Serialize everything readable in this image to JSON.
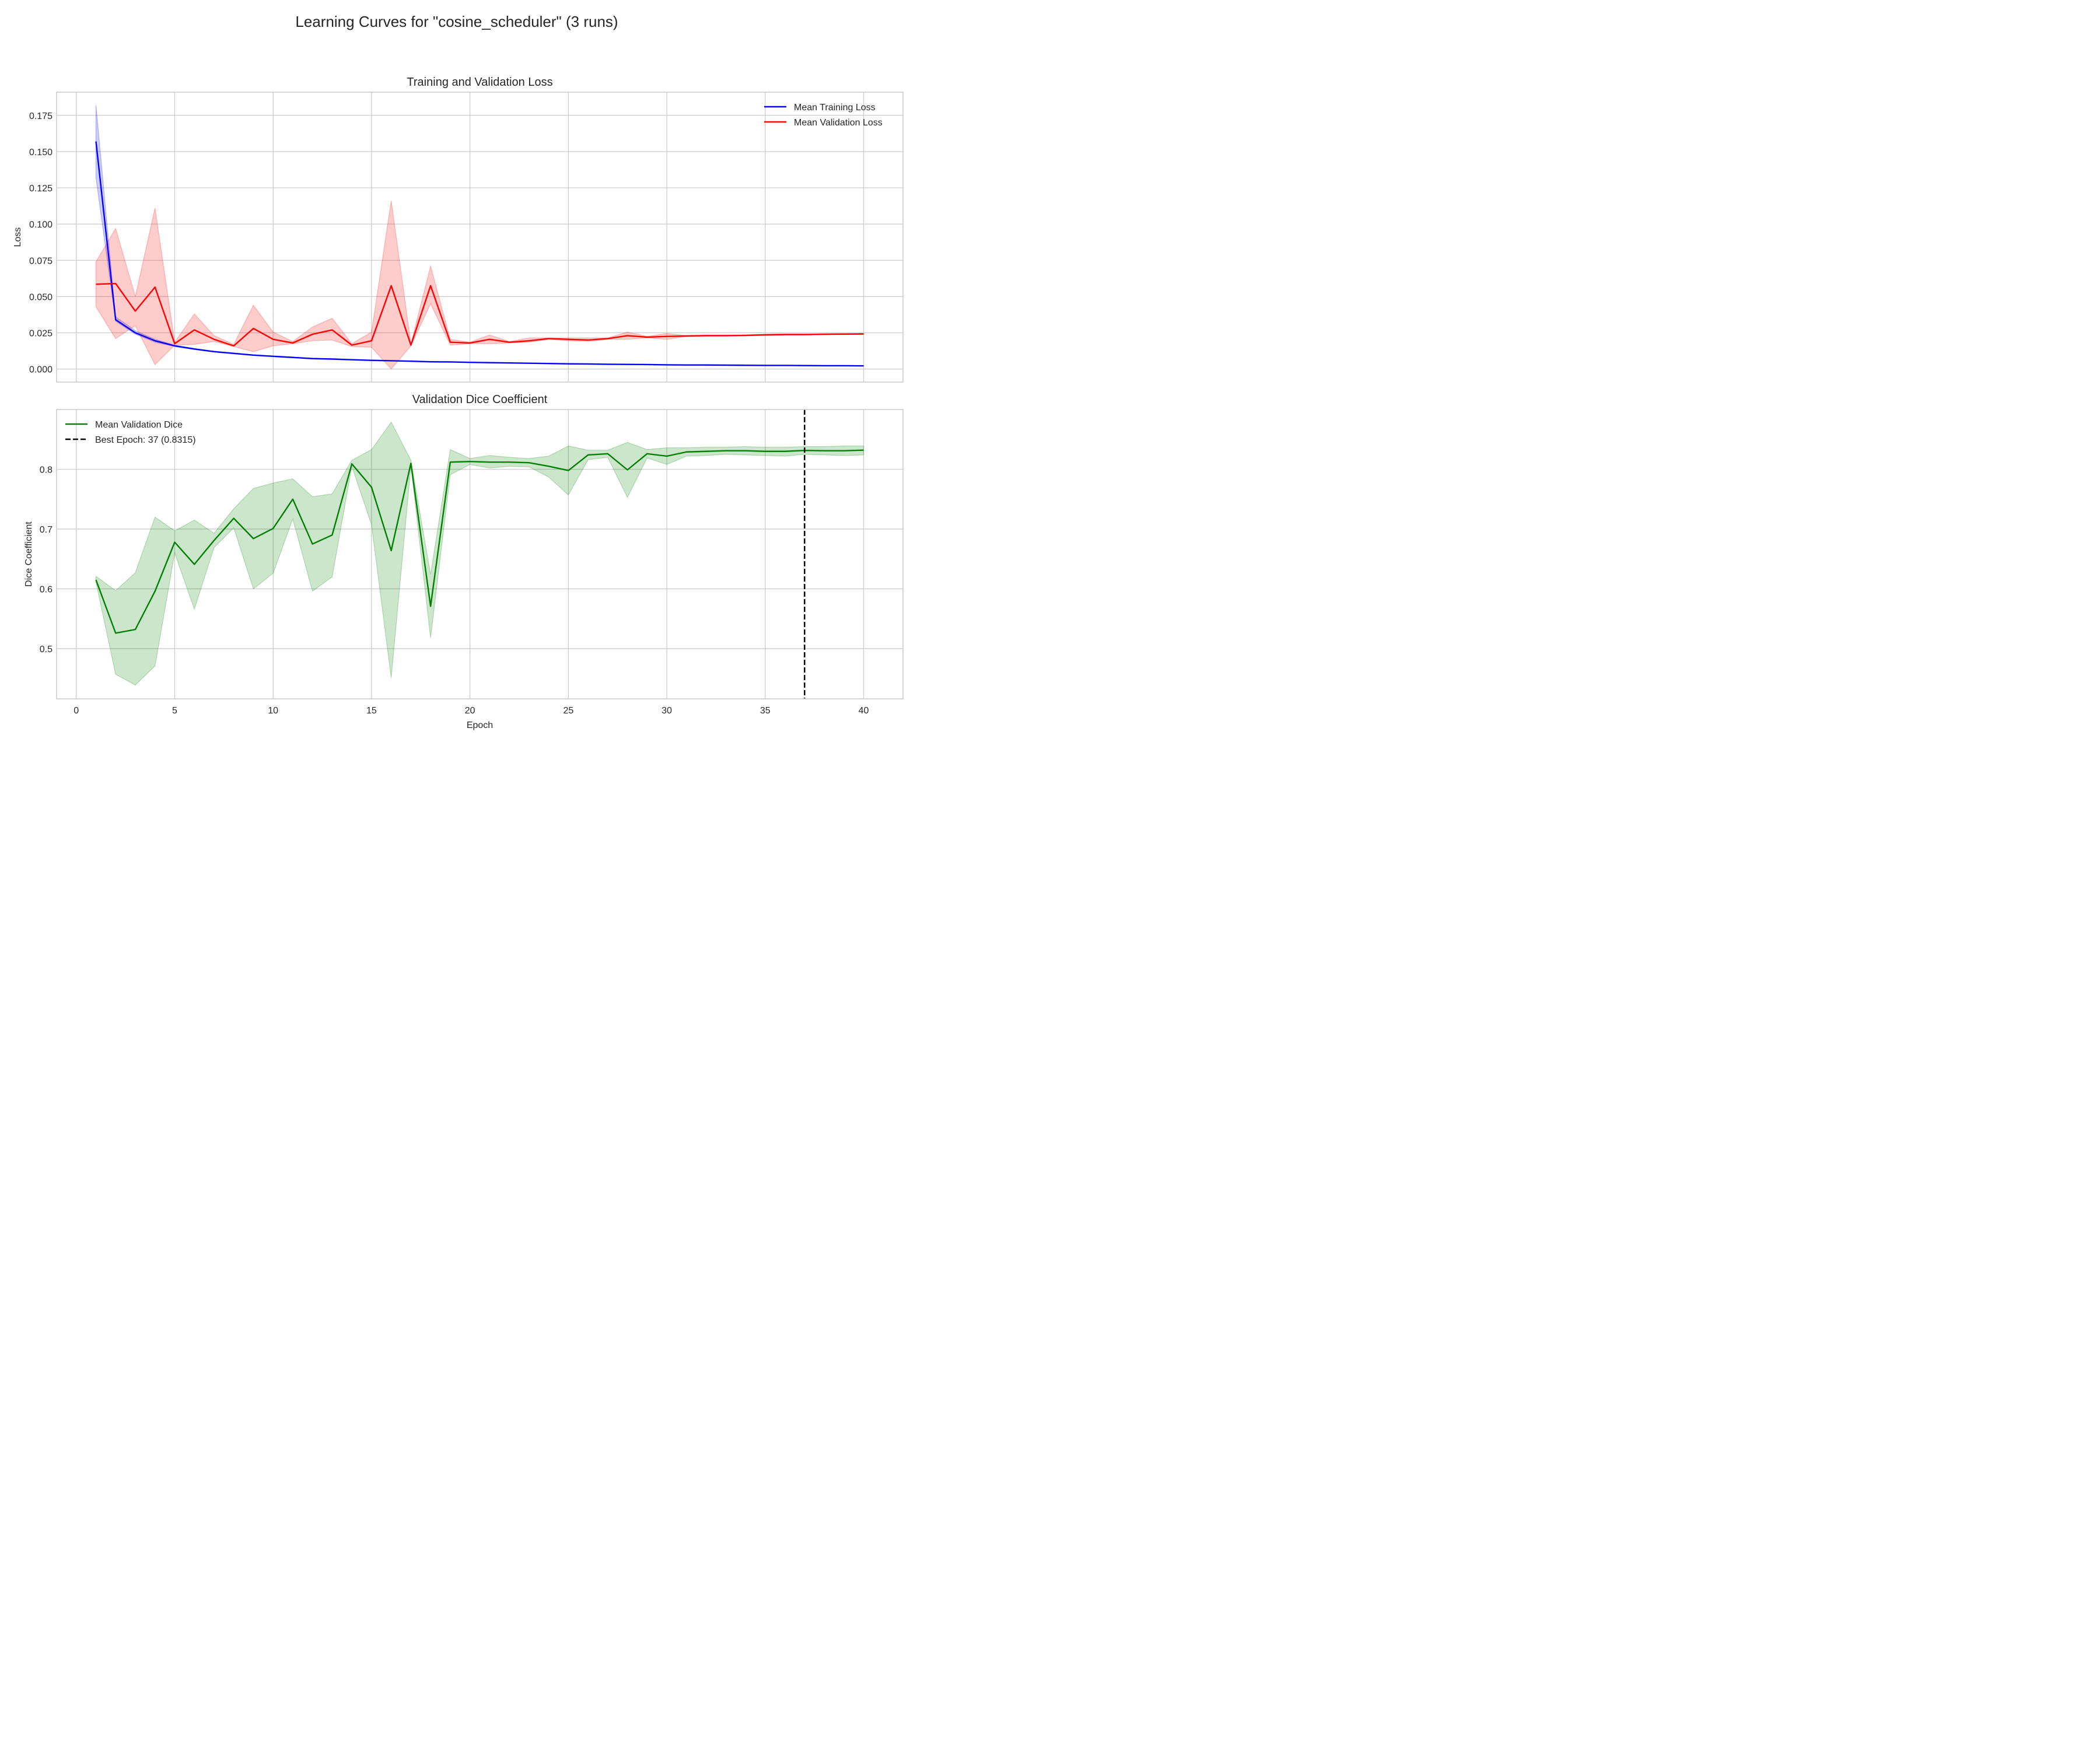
{
  "figure": {
    "suptitle": "Learning Curves for \"cosine_scheduler\" (3 runs)"
  },
  "chart_data": [
    {
      "type": "line",
      "title": "Training and Validation Loss",
      "xlabel": "",
      "ylabel": "Loss",
      "xlim": [
        -1,
        42
      ],
      "ylim": [
        -0.009,
        0.191
      ],
      "xticks": [
        0,
        5,
        10,
        15,
        20,
        25,
        30,
        35,
        40
      ],
      "yticks": [
        0.0,
        0.025,
        0.05,
        0.075,
        0.1,
        0.125,
        0.15,
        0.175
      ],
      "ytick_labels": [
        "0.000",
        "0.025",
        "0.050",
        "0.075",
        "0.100",
        "0.125",
        "0.150",
        "0.175"
      ],
      "show_xtick_labels": false,
      "grid": true,
      "legend_position": "upper right",
      "x": [
        1,
        2,
        3,
        4,
        5,
        6,
        7,
        8,
        9,
        10,
        11,
        12,
        13,
        14,
        15,
        16,
        17,
        18,
        19,
        20,
        21,
        22,
        23,
        24,
        25,
        26,
        27,
        28,
        29,
        30,
        31,
        32,
        33,
        34,
        35,
        36,
        37,
        38,
        39,
        40
      ],
      "series": [
        {
          "name": "Mean Training Loss",
          "color": "#0000ff",
          "values": [
            0.157,
            0.034,
            0.025,
            0.0195,
            0.016,
            0.0138,
            0.012,
            0.0108,
            0.0096,
            0.0088,
            0.008,
            0.0072,
            0.0069,
            0.0064,
            0.006,
            0.0057,
            0.0054,
            0.005,
            0.0049,
            0.0046,
            0.0044,
            0.0042,
            0.004,
            0.0038,
            0.0036,
            0.0035,
            0.0033,
            0.0032,
            0.0031,
            0.0029,
            0.0028,
            0.0028,
            0.0027,
            0.0026,
            0.0025,
            0.0025,
            0.0024,
            0.0023,
            0.0023,
            0.0022
          ],
          "band_lower": [
            0.132,
            0.033,
            0.024,
            0.0185,
            0.0155,
            0.0134,
            0.0117,
            0.0105,
            0.0094,
            0.0086,
            0.0078,
            0.0071,
            0.0068,
            0.0063,
            0.0059,
            0.0056,
            0.0053,
            0.0049,
            0.0048,
            0.0045,
            0.0043,
            0.0041,
            0.0039,
            0.0037,
            0.0035,
            0.0034,
            0.0032,
            0.0031,
            0.003,
            0.0028,
            0.0027,
            0.0027,
            0.0026,
            0.0025,
            0.0024,
            0.0024,
            0.0023,
            0.0022,
            0.0022,
            0.0021
          ],
          "band_upper": [
            0.182,
            0.036,
            0.0265,
            0.0205,
            0.0165,
            0.0142,
            0.0123,
            0.0111,
            0.0098,
            0.009,
            0.0082,
            0.0074,
            0.007,
            0.0065,
            0.0061,
            0.0058,
            0.0055,
            0.0051,
            0.005,
            0.0047,
            0.0045,
            0.0043,
            0.0041,
            0.0039,
            0.0037,
            0.0036,
            0.0034,
            0.0033,
            0.0032,
            0.003,
            0.0029,
            0.0029,
            0.0028,
            0.0027,
            0.0026,
            0.0026,
            0.0025,
            0.0024,
            0.0024,
            0.0023
          ]
        },
        {
          "name": "Mean Validation Loss",
          "color": "#ff0000",
          "values": [
            0.0585,
            0.059,
            0.04,
            0.0565,
            0.0175,
            0.027,
            0.0205,
            0.016,
            0.028,
            0.0205,
            0.018,
            0.024,
            0.027,
            0.0165,
            0.0195,
            0.0575,
            0.0165,
            0.0575,
            0.0185,
            0.018,
            0.0205,
            0.0185,
            0.0195,
            0.021,
            0.0205,
            0.02,
            0.021,
            0.023,
            0.022,
            0.0225,
            0.0228,
            0.023,
            0.023,
            0.0232,
            0.0236,
            0.0238,
            0.0238,
            0.024,
            0.0241,
            0.0242
          ],
          "band_lower": [
            0.043,
            0.021,
            0.03,
            0.003,
            0.0165,
            0.017,
            0.019,
            0.0155,
            0.012,
            0.016,
            0.0175,
            0.0195,
            0.02,
            0.0155,
            0.015,
            0.0,
            0.016,
            0.045,
            0.0165,
            0.0175,
            0.0175,
            0.018,
            0.0185,
            0.0205,
            0.0195,
            0.019,
            0.0205,
            0.0205,
            0.0215,
            0.0205,
            0.0225,
            0.0228,
            0.0228,
            0.0228,
            0.0232,
            0.0235,
            0.0235,
            0.0238,
            0.0238,
            0.024
          ],
          "band_upper": [
            0.074,
            0.097,
            0.05,
            0.111,
            0.0185,
            0.038,
            0.023,
            0.017,
            0.044,
            0.0255,
            0.019,
            0.029,
            0.035,
            0.0175,
            0.0255,
            0.116,
            0.0175,
            0.071,
            0.0205,
            0.0185,
            0.0235,
            0.019,
            0.0215,
            0.0215,
            0.0215,
            0.0215,
            0.0215,
            0.0255,
            0.0225,
            0.0245,
            0.0232,
            0.0235,
            0.0235,
            0.0236,
            0.024,
            0.0241,
            0.0241,
            0.0243,
            0.0244,
            0.0245
          ]
        }
      ]
    },
    {
      "type": "line",
      "title": "Validation Dice Coefficient",
      "xlabel": "Epoch",
      "ylabel": "Dice Coefficient",
      "xlim": [
        -1,
        42
      ],
      "ylim": [
        0.416,
        0.9
      ],
      "xticks": [
        0,
        5,
        10,
        15,
        20,
        25,
        30,
        35,
        40
      ],
      "yticks": [
        0.5,
        0.6,
        0.7,
        0.8
      ],
      "ytick_labels": [
        "0.5",
        "0.6",
        "0.7",
        "0.8"
      ],
      "show_xtick_labels": true,
      "grid": true,
      "legend_position": "upper left",
      "x": [
        1,
        2,
        3,
        4,
        5,
        6,
        7,
        8,
        9,
        10,
        11,
        12,
        13,
        14,
        15,
        16,
        17,
        18,
        19,
        20,
        21,
        22,
        23,
        24,
        25,
        26,
        27,
        28,
        29,
        30,
        31,
        32,
        33,
        34,
        35,
        36,
        37,
        38,
        39,
        40
      ],
      "series": [
        {
          "name": "Mean Validation Dice",
          "color": "#008000",
          "values": [
            0.615,
            0.526,
            0.532,
            0.596,
            0.678,
            0.641,
            0.681,
            0.718,
            0.684,
            0.701,
            0.75,
            0.675,
            0.69,
            0.809,
            0.77,
            0.664,
            0.81,
            0.571,
            0.812,
            0.813,
            0.812,
            0.812,
            0.811,
            0.805,
            0.798,
            0.824,
            0.826,
            0.799,
            0.826,
            0.822,
            0.829,
            0.83,
            0.831,
            0.831,
            0.83,
            0.83,
            0.8315,
            0.831,
            0.831,
            0.832
          ],
          "band_lower": [
            0.611,
            0.457,
            0.439,
            0.471,
            0.66,
            0.566,
            0.669,
            0.702,
            0.6,
            0.626,
            0.717,
            0.596,
            0.62,
            0.805,
            0.707,
            0.451,
            0.805,
            0.518,
            0.791,
            0.808,
            0.802,
            0.805,
            0.804,
            0.787,
            0.757,
            0.816,
            0.82,
            0.753,
            0.819,
            0.808,
            0.822,
            0.823,
            0.825,
            0.824,
            0.823,
            0.822,
            0.825,
            0.824,
            0.823,
            0.824
          ],
          "band_upper": [
            0.621,
            0.597,
            0.627,
            0.72,
            0.697,
            0.715,
            0.693,
            0.734,
            0.768,
            0.777,
            0.784,
            0.754,
            0.759,
            0.815,
            0.833,
            0.879,
            0.815,
            0.624,
            0.833,
            0.818,
            0.823,
            0.82,
            0.818,
            0.822,
            0.839,
            0.832,
            0.832,
            0.845,
            0.833,
            0.836,
            0.836,
            0.837,
            0.837,
            0.838,
            0.837,
            0.837,
            0.838,
            0.838,
            0.839,
            0.839
          ]
        }
      ],
      "vline": {
        "x": 37,
        "name": "Best Epoch: 37 (0.8315)",
        "color": "#000000",
        "style": "dashed"
      }
    }
  ]
}
